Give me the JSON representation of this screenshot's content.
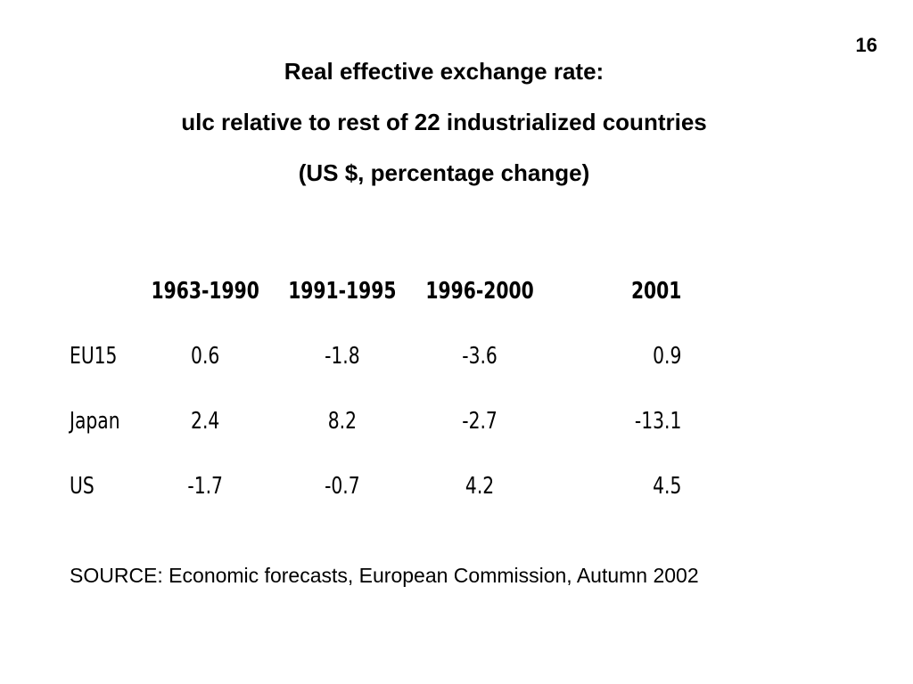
{
  "page_number": "16",
  "title": {
    "line1": "Real effective exchange rate:",
    "line2": "ulc relative to rest of 22 industrialized countries",
    "line3": "(US $, percentage change)"
  },
  "table": {
    "headers": [
      "",
      "1963-1990",
      "1991-1995",
      "1996-2000",
      "2001"
    ],
    "rows": [
      {
        "label": "EU15",
        "values": [
          "0.6",
          "-1.8",
          "-3.6",
          "0.9"
        ]
      },
      {
        "label": "Japan",
        "values": [
          "2.4",
          "8.2",
          "-2.7",
          "-13.1"
        ]
      },
      {
        "label": "US",
        "values": [
          "-1.7",
          "-0.7",
          "4.2",
          "4.5"
        ]
      }
    ]
  },
  "source": "SOURCE: Economic forecasts, European Commission, Autumn 2002"
}
